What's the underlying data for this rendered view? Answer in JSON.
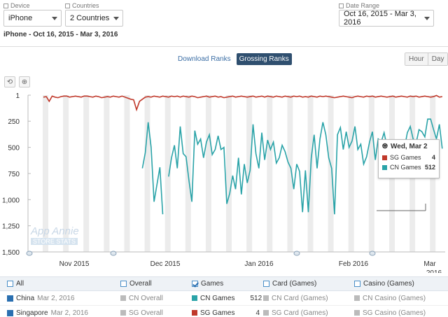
{
  "filters": {
    "device": {
      "label": "Device",
      "value": "iPhone"
    },
    "countries": {
      "label": "Countries",
      "value": "2 Countries"
    },
    "date_range": {
      "label": "Date Range",
      "value": "Oct 16, 2015 - Mar 3, 2016"
    }
  },
  "subtitle": "iPhone - Oct 16, 2015 - Mar 3, 2016",
  "rank_tabs": [
    "Download Ranks",
    "Grossing Ranks"
  ],
  "active_rank_tab": "Grossing Ranks",
  "granularity": [
    "Hour",
    "Day"
  ],
  "tooltip": {
    "date": "Wed, Mar 2",
    "rows": [
      {
        "name": "SG Games",
        "value": "4",
        "color": "#c0392b"
      },
      {
        "name": "CN Games",
        "value": "512",
        "color": "#2aa3a8"
      }
    ]
  },
  "watermark": {
    "line1": "App Annie",
    "line2": "STORE STATS"
  },
  "chart_data": {
    "type": "line",
    "y_axis": {
      "ticks": [
        "1",
        "250",
        "500",
        "750",
        "1,000",
        "1,250",
        "1,500"
      ],
      "min": 1,
      "max": 1500,
      "reversed": true
    },
    "x_axis": {
      "ticks": [
        "Nov 2015",
        "Dec 2015",
        "Jan 2016",
        "Feb 2016",
        "Mar 2016"
      ]
    },
    "series": [
      {
        "name": "SG Games",
        "color": "#c0392b",
        "values": [
          20,
          15,
          60,
          10,
          20,
          25,
          15,
          10,
          10,
          20,
          15,
          10,
          15,
          20,
          10,
          10,
          15,
          20,
          10,
          15,
          25,
          20,
          15,
          20,
          10,
          15,
          20,
          10,
          20,
          30,
          40,
          45,
          140,
          60,
          40,
          20,
          15,
          20,
          10,
          15,
          20,
          10,
          15,
          20,
          10,
          15,
          10,
          20,
          10,
          15,
          20,
          10,
          15,
          25,
          20,
          15,
          10,
          20,
          15,
          10,
          20,
          15,
          25,
          20,
          15,
          10,
          20,
          15,
          10,
          15,
          20,
          15,
          10,
          20,
          15,
          10,
          20,
          10,
          15,
          20,
          10,
          15,
          20,
          10,
          15,
          20,
          10,
          15,
          10,
          20,
          15,
          20,
          10,
          15,
          20,
          10,
          15,
          10,
          15,
          20,
          25,
          20,
          15,
          10,
          15,
          20,
          25,
          15,
          10,
          15,
          20,
          10,
          15,
          10,
          20,
          15,
          10,
          15,
          20,
          15,
          10,
          20,
          15,
          10,
          15,
          20,
          10,
          15,
          10,
          20,
          15,
          10,
          15,
          20,
          15,
          4,
          20,
          15
        ]
      },
      {
        "name": "CN Games",
        "color": "#2aa3a8",
        "values": [
          null,
          null,
          null,
          null,
          null,
          null,
          null,
          null,
          null,
          null,
          null,
          null,
          null,
          null,
          null,
          null,
          null,
          null,
          null,
          null,
          null,
          null,
          null,
          null,
          null,
          null,
          null,
          null,
          null,
          null,
          null,
          null,
          null,
          null,
          null,
          null,
          null,
          null,
          null,
          null,
          null,
          null,
          null,
          null,
          null,
          null,
          null,
          null,
          null,
          null,
          null,
          null,
          null,
          null,
          null,
          null,
          null,
          null,
          null,
          null,
          null,
          null,
          null,
          null,
          null,
          null,
          null,
          null,
          null,
          null,
          null,
          null,
          null,
          null,
          null,
          null,
          null,
          null,
          null,
          null,
          null,
          null,
          null,
          null,
          null,
          null,
          null,
          null,
          null,
          null,
          null,
          null,
          null,
          null,
          null,
          null,
          null,
          null,
          null,
          null,
          null,
          null,
          null,
          null,
          null,
          null,
          null,
          null,
          null,
          null,
          null,
          null,
          null,
          null,
          null,
          null,
          null,
          null,
          null,
          null,
          null,
          null,
          null,
          null,
          null,
          null,
          null,
          null,
          null,
          null,
          null,
          null,
          null,
          null,
          null,
          null,
          null,
          null
        ],
        "points": [
          [
            0,
            700
          ],
          [
            1,
            550
          ],
          [
            2,
            260
          ],
          [
            3,
            500
          ],
          [
            4,
            1020
          ],
          [
            6,
            690
          ],
          [
            7,
            1140
          ],
          [
            8,
            null
          ],
          [
            9,
            780
          ],
          [
            10,
            600
          ],
          [
            11,
            480
          ],
          [
            12,
            700
          ],
          [
            13,
            300
          ],
          [
            14,
            560
          ],
          [
            15,
            590
          ],
          [
            16,
            820
          ],
          [
            17,
            1020
          ],
          [
            18,
            340
          ],
          [
            19,
            470
          ],
          [
            20,
            420
          ],
          [
            21,
            600
          ],
          [
            22,
            450
          ],
          [
            23,
            380
          ],
          [
            24,
            570
          ],
          [
            25,
            520
          ],
          [
            26,
            390
          ],
          [
            27,
            520
          ],
          [
            28,
            500
          ],
          [
            29,
            1040
          ],
          [
            30,
            940
          ],
          [
            31,
            770
          ],
          [
            32,
            900
          ],
          [
            33,
            600
          ],
          [
            34,
            950
          ],
          [
            35,
            660
          ],
          [
            36,
            840
          ],
          [
            37,
            720
          ],
          [
            38,
            280
          ],
          [
            39,
            560
          ],
          [
            40,
            700
          ],
          [
            41,
            360
          ],
          [
            42,
            620
          ],
          [
            43,
            430
          ],
          [
            44,
            520
          ],
          [
            45,
            450
          ],
          [
            46,
            650
          ],
          [
            47,
            600
          ],
          [
            48,
            480
          ],
          [
            49,
            540
          ],
          [
            50,
            640
          ],
          [
            51,
            700
          ],
          [
            52,
            900
          ],
          [
            53,
            660
          ],
          [
            54,
            730
          ],
          [
            55,
            1120
          ],
          [
            56,
            720
          ],
          [
            57,
            1120
          ],
          [
            58,
            600
          ],
          [
            59,
            380
          ],
          [
            60,
            700
          ],
          [
            61,
            420
          ],
          [
            62,
            260
          ],
          [
            63,
            380
          ],
          [
            64,
            600
          ],
          [
            65,
            700
          ],
          [
            66,
            1140
          ],
          [
            67,
            380
          ],
          [
            68,
            310
          ],
          [
            69,
            520
          ],
          [
            70,
            350
          ],
          [
            71,
            500
          ],
          [
            72,
            440
          ],
          [
            73,
            300
          ],
          [
            74,
            520
          ],
          [
            75,
            470
          ],
          [
            76,
            660
          ],
          [
            77,
            590
          ],
          [
            78,
            450
          ],
          [
            79,
            350
          ],
          [
            80,
            620
          ],
          [
            81,
            420
          ],
          [
            82,
            450
          ],
          [
            83,
            360
          ],
          [
            84,
            490
          ],
          [
            85,
            560
          ],
          [
            86,
            600
          ],
          [
            87,
            540
          ],
          [
            88,
            460
          ],
          [
            89,
            620
          ],
          [
            90,
            510
          ],
          [
            91,
            360
          ],
          [
            92,
            300
          ],
          [
            93,
            420
          ],
          [
            94,
            460
          ],
          [
            95,
            330
          ],
          [
            96,
            350
          ],
          [
            97,
            400
          ],
          [
            98,
            230
          ],
          [
            99,
            230
          ],
          [
            100,
            330
          ],
          [
            101,
            420
          ],
          [
            102,
            280
          ],
          [
            103,
            512
          ]
        ],
        "start_index": 34
      }
    ]
  },
  "table": {
    "header": [
      {
        "label": "All",
        "checked": false
      },
      {
        "label": "Overall",
        "checked": false
      },
      {
        "label": "Games",
        "checked": true
      },
      {
        "label": "Card (Games)",
        "checked": false
      },
      {
        "label": "Casino (Games)",
        "checked": false
      }
    ],
    "rows": [
      {
        "country": "China",
        "date": "Mar 2, 2016",
        "overall": "CN Overall",
        "games": "CN Games",
        "games_value": "512",
        "games_color": "#2aa3a8",
        "card": "CN Card (Games)",
        "casino": "CN Casino (Games)"
      },
      {
        "country": "Singapore",
        "date": "Mar 2, 2016",
        "overall": "SG Overall",
        "games": "SG Games",
        "games_value": "4",
        "games_color": "#c0392b",
        "card": "SG Card (Games)",
        "casino": "SG Casino (Games)"
      }
    ]
  }
}
